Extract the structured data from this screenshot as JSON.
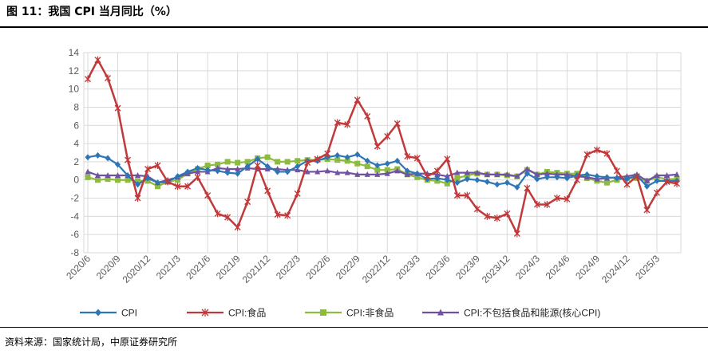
{
  "title": "图 11：我国 CPI 当月同比（%）",
  "source": "资料来源：国家统计局，中原证券研究所",
  "chart_data": {
    "type": "line",
    "ylim": [
      -8,
      14
    ],
    "ytick_step": 2,
    "grid": true,
    "legend_position": "bottom",
    "x": [
      "2020/6",
      "2020/7",
      "2020/8",
      "2020/9",
      "2020/10",
      "2020/11",
      "2020/12",
      "2021/1",
      "2021/2",
      "2021/3",
      "2021/4",
      "2021/5",
      "2021/6",
      "2021/7",
      "2021/8",
      "2021/9",
      "2021/10",
      "2021/11",
      "2021/12",
      "2022/1",
      "2022/2",
      "2022/3",
      "2022/4",
      "2022/5",
      "2022/6",
      "2022/7",
      "2022/8",
      "2022/9",
      "2022/10",
      "2022/11",
      "2022/12",
      "2023/1",
      "2023/2",
      "2023/3",
      "2023/4",
      "2023/5",
      "2023/6",
      "2023/7",
      "2023/8",
      "2023/9",
      "2023/10",
      "2023/11",
      "2023/12",
      "2024/1",
      "2024/2",
      "2024/3",
      "2024/4",
      "2024/5",
      "2024/6",
      "2024/7",
      "2024/8",
      "2024/9",
      "2024/10",
      "2024/11",
      "2024/12",
      "2025/1",
      "2025/2",
      "2025/3",
      "2025/4",
      "2025/5"
    ],
    "x_tick_labels": [
      "2020/6",
      "2020/9",
      "2020/12",
      "2021/3",
      "2021/6",
      "2021/9",
      "2021/12",
      "2022/3",
      "2022/6",
      "2022/9",
      "2022/12",
      "2023/3",
      "2023/6",
      "2023/9",
      "2023/12",
      "2024/3",
      "2024/6",
      "2024/9",
      "2024/12",
      "2025/3"
    ],
    "series": [
      {
        "name": "CPI",
        "color": "#2E75B6",
        "marker": "diamond",
        "values": [
          2.5,
          2.7,
          2.4,
          1.7,
          0.5,
          -0.5,
          0.2,
          -0.3,
          -0.2,
          0.4,
          0.9,
          1.3,
          1.1,
          1.0,
          0.8,
          0.7,
          1.5,
          2.3,
          1.5,
          0.9,
          0.9,
          1.5,
          2.1,
          2.1,
          2.5,
          2.7,
          2.5,
          2.8,
          2.1,
          1.6,
          1.8,
          2.1,
          1.0,
          0.7,
          0.1,
          0.2,
          0.0,
          -0.3,
          0.1,
          0.0,
          -0.2,
          -0.5,
          -0.3,
          -0.8,
          0.7,
          0.1,
          0.3,
          0.3,
          0.2,
          0.5,
          0.6,
          0.4,
          0.3,
          0.2,
          0.1,
          0.5,
          -0.7,
          -0.1,
          -0.1,
          -0.1
        ]
      },
      {
        "name": "CPI:食品",
        "color": "#C0393B",
        "marker": "x",
        "values": [
          11.1,
          13.2,
          11.2,
          7.9,
          2.2,
          -2.0,
          1.2,
          1.6,
          -0.2,
          -0.7,
          -0.7,
          0.3,
          -1.7,
          -3.7,
          -4.1,
          -5.2,
          -2.4,
          1.6,
          -1.2,
          -3.8,
          -3.9,
          -1.5,
          1.9,
          2.3,
          2.9,
          6.3,
          6.1,
          8.8,
          7.0,
          3.7,
          4.8,
          6.2,
          2.6,
          2.4,
          0.4,
          1.0,
          2.3,
          -1.7,
          -1.7,
          -3.2,
          -4.0,
          -4.2,
          -3.7,
          -5.9,
          -0.9,
          -2.7,
          -2.7,
          -2.0,
          -2.1,
          0.0,
          2.8,
          3.3,
          2.9,
          1.0,
          -0.5,
          0.4,
          -3.3,
          -1.4,
          -0.2,
          -0.4
        ]
      },
      {
        "name": "CPI:非食品",
        "color": "#8DBB3F",
        "marker": "square",
        "values": [
          0.3,
          0.0,
          0.1,
          0.0,
          0.0,
          -0.1,
          -0.1,
          -0.7,
          -0.2,
          0.0,
          0.7,
          1.2,
          1.6,
          1.7,
          2.0,
          1.9,
          2.0,
          2.4,
          2.5,
          2.0,
          2.0,
          2.1,
          2.2,
          2.2,
          2.3,
          2.2,
          2.1,
          1.8,
          1.5,
          1.1,
          1.1,
          1.2,
          0.6,
          0.3,
          0.0,
          -0.1,
          -0.4,
          0.2,
          0.5,
          0.7,
          0.6,
          0.6,
          0.5,
          0.4,
          1.1,
          0.6,
          0.9,
          0.8,
          0.7,
          0.7,
          0.2,
          -0.1,
          -0.3,
          0.0,
          0.2,
          0.2,
          -0.1,
          0.3,
          0.1,
          0.1
        ]
      },
      {
        "name": "CPI:不包括食品和能源(核心CPI)",
        "color": "#7152A2",
        "marker": "triangle",
        "values": [
          0.9,
          0.5,
          0.5,
          0.5,
          0.5,
          0.5,
          0.4,
          -0.3,
          0.0,
          0.3,
          0.7,
          0.9,
          0.9,
          1.3,
          1.2,
          1.2,
          1.3,
          1.2,
          1.2,
          1.2,
          1.1,
          1.1,
          0.9,
          0.9,
          1.0,
          0.8,
          0.8,
          0.6,
          0.6,
          0.6,
          0.7,
          1.0,
          0.6,
          0.7,
          0.7,
          0.6,
          0.4,
          0.8,
          0.8,
          0.8,
          0.6,
          0.6,
          0.6,
          0.4,
          1.2,
          0.6,
          0.7,
          0.6,
          0.6,
          0.4,
          0.3,
          0.1,
          0.2,
          0.3,
          0.4,
          0.6,
          -0.1,
          0.5,
          0.5,
          0.6
        ]
      }
    ]
  }
}
